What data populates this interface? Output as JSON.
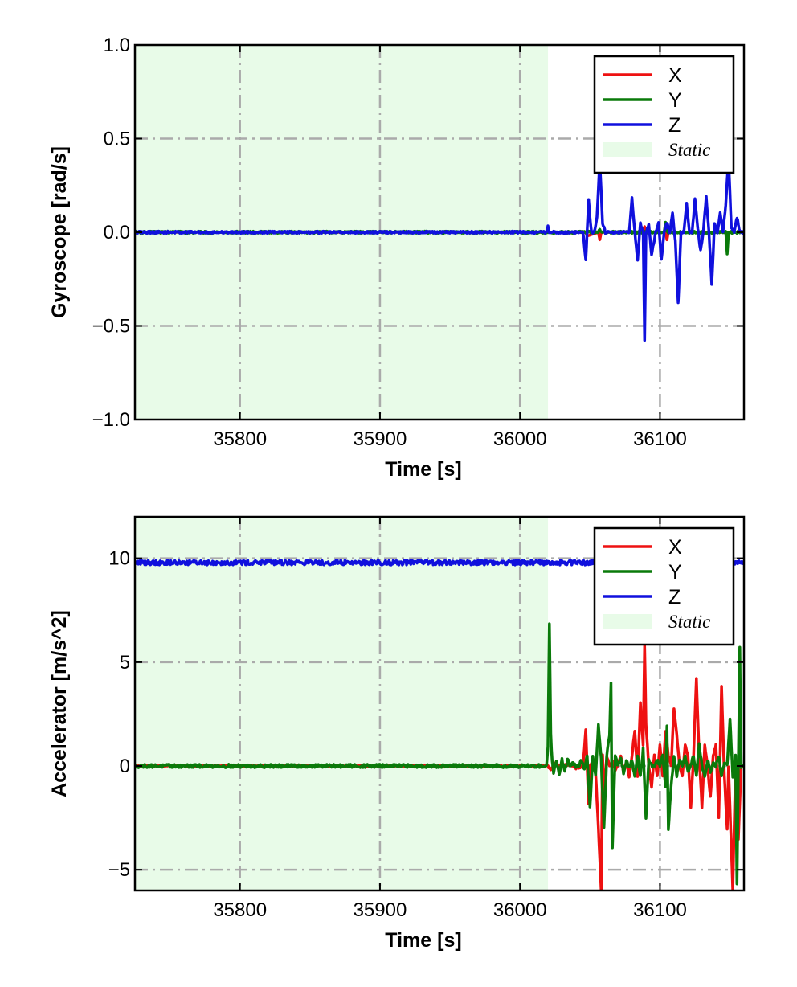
{
  "chart_data": [
    {
      "type": "line",
      "xlabel": "Time [s]",
      "ylabel": "Gyroscope [rad/s]",
      "xlim": [
        35725,
        36160
      ],
      "ylim": [
        -1.0,
        1.0
      ],
      "xticks": [
        35800,
        35900,
        36000,
        36100
      ],
      "xtick_labels": [
        "35800",
        "35900",
        "36000",
        "36100"
      ],
      "yticks": [
        1.0,
        0.5,
        0.0,
        -0.5,
        -1.0
      ],
      "ytick_labels": [
        "1.0",
        "0.5",
        "0.0",
        "−0.5",
        "−1.0"
      ],
      "grid": true,
      "legend_position": "top-right",
      "static_region": {
        "label": "Static",
        "x_start": 35725,
        "x_end": 36020,
        "color": "#e8fbe8"
      },
      "series": [
        {
          "name": "X",
          "color": "#ee1111",
          "x": [
            35725,
            36020,
            36047,
            36048,
            36056,
            36057,
            36058,
            36088,
            36089,
            36090,
            36104,
            36105,
            36106,
            36160
          ],
          "y": [
            0.0,
            0.0,
            0.0,
            -0.02,
            0.0,
            -0.04,
            0.0,
            0.0,
            0.03,
            0.0,
            0.0,
            -0.04,
            0.0,
            0.0
          ]
        },
        {
          "name": "Y",
          "color": "#0a7a0a",
          "x": [
            35725,
            36056,
            36057,
            36058,
            36103,
            36104,
            36105,
            36147,
            36148,
            36149,
            36150,
            36160
          ],
          "y": [
            0.0,
            0.0,
            0.02,
            0.0,
            0.0,
            0.05,
            0.0,
            0.0,
            -0.12,
            0.0,
            0.0,
            0.0
          ],
          "noise": 0.006
        },
        {
          "name": "Z",
          "color": "#1010dd",
          "x": [
            35725,
            36019,
            36020,
            36021,
            36045,
            36047,
            36049,
            36051,
            36053,
            36055,
            36057,
            36059,
            36061,
            36063,
            36066,
            36070,
            36075,
            36078,
            36080,
            36082,
            36084,
            36086,
            36088,
            36089,
            36090,
            36092,
            36094,
            36097,
            36099,
            36101,
            36103,
            36105,
            36107,
            36109,
            36111,
            36113,
            36115,
            36117,
            36119,
            36121,
            36123,
            36125,
            36127,
            36129,
            36131,
            36133,
            36135,
            36137,
            36139,
            36141,
            36143,
            36145,
            36147,
            36149,
            36151,
            36153,
            36155,
            36157,
            36160
          ],
          "y": [
            0.0,
            0.0,
            0.03,
            0.0,
            0.0,
            -0.15,
            0.17,
            0.0,
            0.0,
            0.08,
            0.38,
            0.05,
            0.0,
            0.0,
            0.0,
            0.0,
            0.0,
            0.0,
            0.18,
            0.0,
            -0.15,
            0.05,
            0.0,
            -0.58,
            0.0,
            0.04,
            -0.12,
            0.0,
            0.05,
            -0.15,
            0.0,
            0.05,
            0.0,
            0.1,
            -0.05,
            -0.38,
            0.0,
            0.0,
            0.15,
            0.0,
            0.0,
            0.18,
            0.02,
            -0.1,
            0.0,
            0.19,
            0.0,
            -0.28,
            0.05,
            0.0,
            0.1,
            0.0,
            0.15,
            0.4,
            0.02,
            0.0,
            0.08,
            0.0,
            0.0
          ],
          "noise": 0.006
        }
      ]
    },
    {
      "type": "line",
      "xlabel": "Time [s]",
      "ylabel": "Accelerator [m/s^2]",
      "xlim": [
        35725,
        36160
      ],
      "ylim": [
        -6,
        12
      ],
      "xticks": [
        35800,
        35900,
        36000,
        36100
      ],
      "xtick_labels": [
        "35800",
        "35900",
        "36000",
        "36100"
      ],
      "yticks": [
        10,
        5,
        0,
        -5
      ],
      "ytick_labels": [
        "10",
        "5",
        "0",
        "−5"
      ],
      "grid": true,
      "legend_position": "top-right",
      "static_region": {
        "label": "Static",
        "x_start": 35725,
        "x_end": 36020,
        "color": "#e8fbe8"
      },
      "series": [
        {
          "name": "X",
          "color": "#ee1111",
          "x": [
            35725,
            36020,
            36022,
            36025,
            36030,
            36035,
            36040,
            36045,
            36047,
            36048,
            36049,
            36050,
            36052,
            36054,
            36056,
            36058,
            36059,
            36060,
            36062,
            36064,
            36066,
            36068,
            36070,
            36072,
            36074,
            36076,
            36078,
            36080,
            36082,
            36084,
            36086,
            36088,
            36089,
            36090,
            36092,
            36094,
            36096,
            36098,
            36100,
            36102,
            36104,
            36106,
            36108,
            36110,
            36112,
            36114,
            36116,
            36118,
            36120,
            36122,
            36124,
            36126,
            36128,
            36130,
            36132,
            36134,
            36136,
            36138,
            36140,
            36142,
            36144,
            36146,
            36148,
            36149,
            36150,
            36152,
            36154,
            36156,
            36158,
            36160
          ],
          "y": [
            0.0,
            0.0,
            -0.2,
            0.1,
            0.0,
            0.1,
            -0.1,
            0.0,
            1.7,
            0.0,
            -1.8,
            0.0,
            0.3,
            -0.3,
            -3.0,
            -6.0,
            0.5,
            -1.5,
            0.5,
            0.0,
            0.3,
            -0.2,
            0.0,
            0.5,
            -0.3,
            0.2,
            -0.5,
            0.5,
            1.7,
            -0.5,
            3.0,
            1.0,
            5.8,
            2.0,
            0.0,
            -1.0,
            0.5,
            -0.5,
            1.0,
            -0.5,
            1.7,
            0.5,
            0.0,
            2.8,
            1.5,
            0.0,
            -0.5,
            1.0,
            0.5,
            -2.0,
            0.5,
            4.2,
            0.5,
            -2.0,
            1.0,
            0.0,
            -1.5,
            0.5,
            1.0,
            -2.5,
            3.8,
            -0.5,
            -3.0,
            0.0,
            -2.0,
            -6.0,
            0.0,
            -3.5,
            0.0,
            0.0
          ],
          "noise": 0.05
        },
        {
          "name": "Y",
          "color": "#0a7a0a",
          "x": [
            35725,
            36019,
            36020,
            36021,
            36022,
            36023,
            36024,
            36026,
            36028,
            36030,
            36032,
            36034,
            36036,
            36038,
            36040,
            36042,
            36044,
            36046,
            36048,
            36050,
            36052,
            36054,
            36056,
            36058,
            36060,
            36062,
            36064,
            36065,
            36066,
            36068,
            36070,
            36072,
            36074,
            36076,
            36078,
            36080,
            36082,
            36084,
            36086,
            36088,
            36090,
            36092,
            36094,
            36096,
            36098,
            36100,
            36102,
            36104,
            36105,
            36106,
            36108,
            36110,
            36112,
            36114,
            36116,
            36118,
            36120,
            36122,
            36124,
            36126,
            36128,
            36130,
            36132,
            36134,
            36136,
            36138,
            36140,
            36142,
            36144,
            36146,
            36148,
            36150,
            36152,
            36154,
            36155,
            36156,
            36157,
            36158,
            36160
          ],
          "y": [
            0.0,
            0.0,
            1.0,
            6.8,
            1.5,
            0.2,
            -0.3,
            0.3,
            -0.4,
            0.3,
            -0.2,
            0.3,
            0.0,
            0.2,
            -0.1,
            0.0,
            0.3,
            -0.2,
            0.5,
            -2.0,
            0.5,
            -0.5,
            2.0,
            0.3,
            -3.0,
            0.5,
            1.5,
            4.0,
            -4.0,
            0.5,
            0.0,
            0.3,
            -0.3,
            0.2,
            0.0,
            0.3,
            -0.5,
            0.5,
            -0.5,
            0.8,
            -2.5,
            0.3,
            0.0,
            0.0,
            0.3,
            0.0,
            0.5,
            -1.0,
            2.0,
            -3.0,
            -1.0,
            0.5,
            -0.5,
            0.3,
            0.0,
            0.5,
            -0.3,
            0.0,
            0.5,
            -0.5,
            1.0,
            0.0,
            -0.5,
            0.3,
            -0.3,
            0.2,
            0.0,
            0.5,
            -0.5,
            0.2,
            0.0,
            2.3,
            -0.5,
            0.5,
            -5.7,
            0.0,
            5.7,
            0.0,
            0.0
          ],
          "noise": 0.08
        },
        {
          "name": "Z",
          "color": "#1010dd",
          "x": [
            35725,
            36160
          ],
          "y": [
            9.8,
            9.8
          ],
          "noise": 0.12
        }
      ]
    }
  ]
}
